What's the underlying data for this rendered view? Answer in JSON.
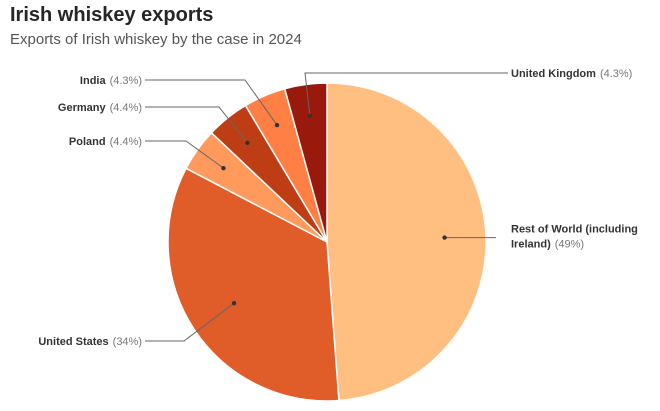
{
  "header": {
    "title": "Irish whiskey exports",
    "subtitle": "Exports of Irish whiskey by the case in 2024"
  },
  "chart_data": {
    "type": "pie",
    "title": "Irish whiskey exports",
    "subtitle": "Exports of Irish whiskey by the case in 2024",
    "unit": "%",
    "start": "12 o'clock, clockwise",
    "slices": [
      {
        "label": "Rest of World (including Ireland)",
        "label_lines": [
          "Rest of World (including",
          "Ireland)"
        ],
        "value": 49,
        "pct_label": "(49%)",
        "color": "#FFBF80"
      },
      {
        "label": "United States",
        "label_lines": [
          "United States"
        ],
        "value": 34,
        "pct_label": "(34%)",
        "color": "#E05C29"
      },
      {
        "label": "Poland",
        "label_lines": [
          "Poland"
        ],
        "value": 4.4,
        "pct_label": "(4.4%)",
        "color": "#FF9A5C"
      },
      {
        "label": "Germany",
        "label_lines": [
          "Germany"
        ],
        "value": 4.4,
        "pct_label": "(4.4%)",
        "color": "#BF3D14"
      },
      {
        "label": "India",
        "label_lines": [
          "India"
        ],
        "value": 4.3,
        "pct_label": "(4.3%)",
        "color": "#FF7F45"
      },
      {
        "label": "United Kingdom",
        "label_lines": [
          "United Kingdom"
        ],
        "value": 4.3,
        "pct_label": "(4.3%)",
        "color": "#991A0D"
      }
    ]
  }
}
